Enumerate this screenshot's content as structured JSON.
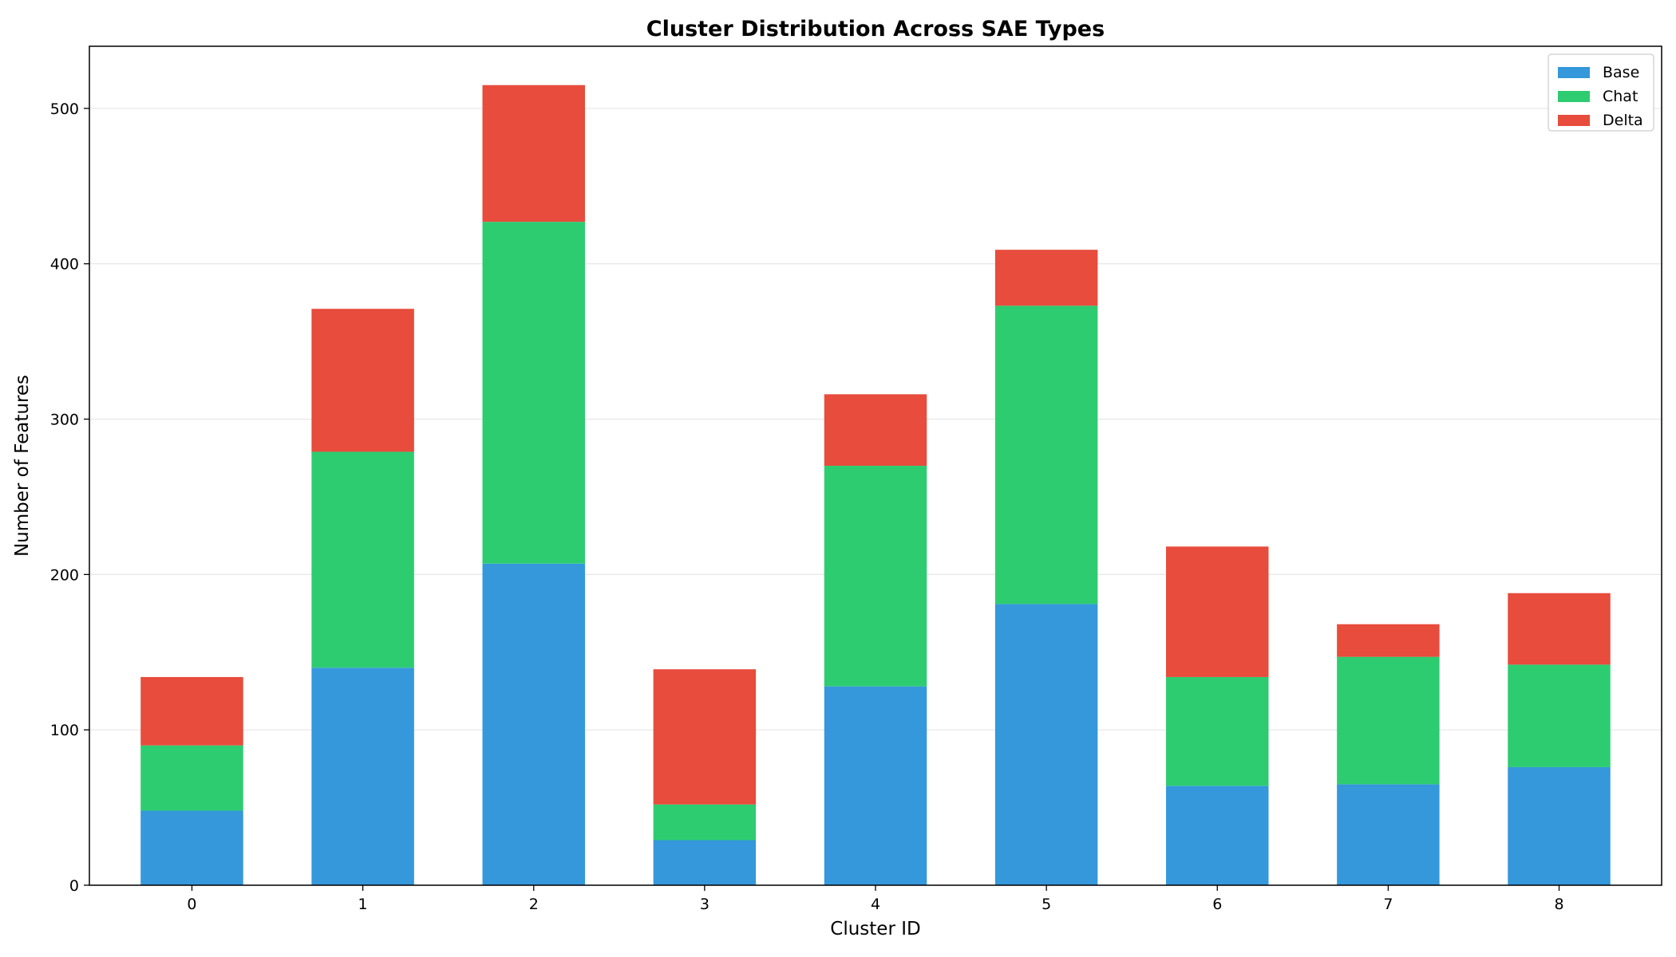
{
  "chart_data": {
    "type": "bar",
    "stacked": true,
    "title": "Cluster Distribution Across SAE Types",
    "xlabel": "Cluster ID",
    "ylabel": "Number of Features",
    "categories": [
      "0",
      "1",
      "2",
      "3",
      "4",
      "5",
      "6",
      "7",
      "8"
    ],
    "series": [
      {
        "name": "Base",
        "color": "#3498db",
        "values": [
          48,
          140,
          207,
          29,
          128,
          181,
          64,
          65,
          76
        ]
      },
      {
        "name": "Chat",
        "color": "#2ecc71",
        "values": [
          42,
          139,
          220,
          23,
          142,
          192,
          70,
          82,
          66
        ]
      },
      {
        "name": "Delta",
        "color": "#e74c3c",
        "values": [
          44,
          92,
          88,
          87,
          46,
          36,
          84,
          21,
          46
        ]
      }
    ],
    "ylim": [
      0,
      540
    ],
    "yticks": [
      0,
      100,
      200,
      300,
      400,
      500
    ],
    "grid": "y",
    "legend_position": "top-right"
  }
}
